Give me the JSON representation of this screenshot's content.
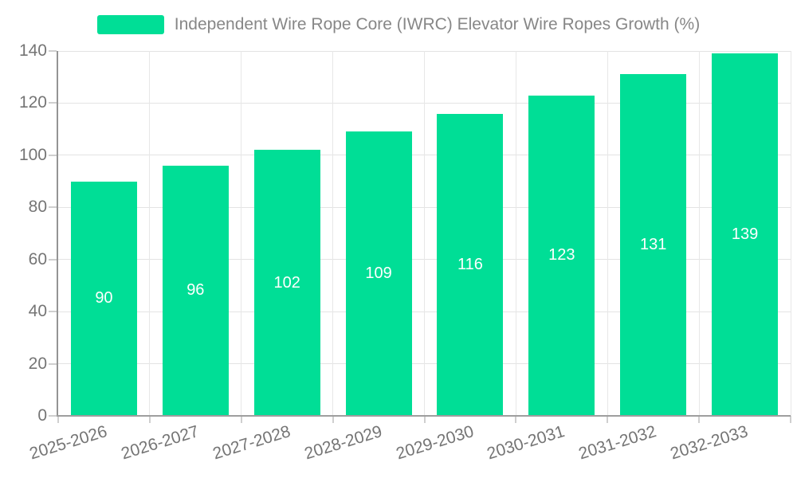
{
  "chart_data": {
    "type": "bar",
    "title": "Independent Wire Rope Core (IWRC) Elevator Wire Ropes Growth (%)",
    "categories": [
      "2025-2026",
      "2026-2027",
      "2027-2028",
      "2028-2029",
      "2029-2030",
      "2030-2031",
      "2031-2032",
      "2032-2033"
    ],
    "values": [
      90,
      96,
      102,
      109,
      116,
      123,
      131,
      139
    ],
    "xlabel": "",
    "ylabel": "",
    "ylim": [
      0,
      140
    ],
    "ytick_step": 20,
    "yticks": [
      0,
      20,
      40,
      60,
      80,
      100,
      120,
      140
    ],
    "grid": "on",
    "legend_position": "top",
    "value_labels": "inside-center",
    "colors": {
      "bar": "#00DE96",
      "value_label": "#FFFFFF",
      "axis_text": "#757575",
      "title_text": "#878787",
      "grid": "#E3E3E3",
      "axis_line": "#9E9E9E",
      "tick": "#CFCFCF"
    }
  }
}
